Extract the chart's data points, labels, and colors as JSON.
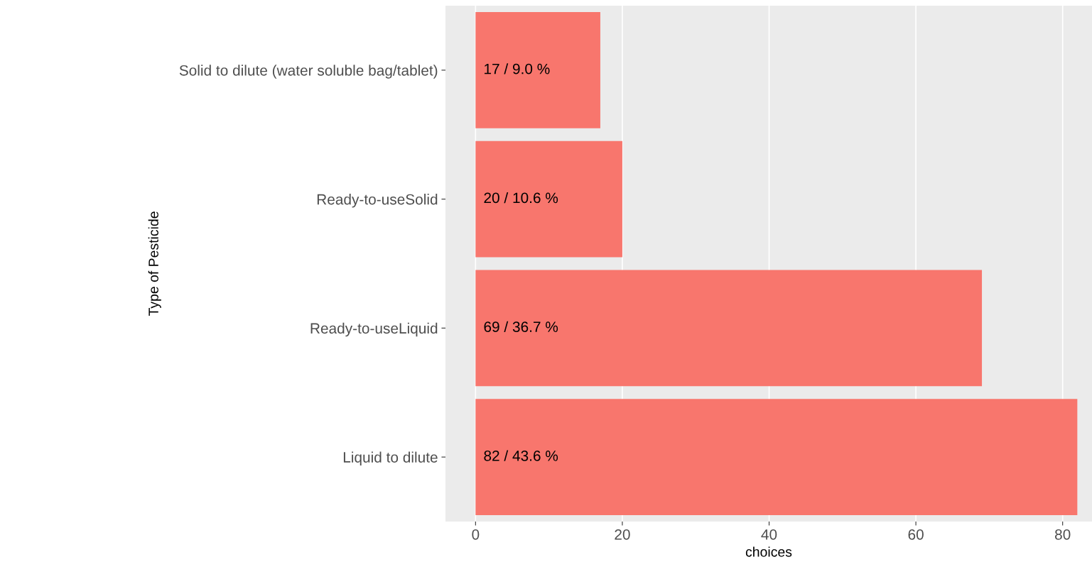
{
  "chart_data": {
    "type": "bar",
    "orientation": "horizontal",
    "xlabel": "choices",
    "ylabel": "Type of Pesticide",
    "categories": [
      "Solid to dilute (water soluble bag/tablet)",
      "Ready-to-useSolid",
      "Ready-to-useLiquid",
      "Liquid to dilute"
    ],
    "values": [
      17,
      20,
      69,
      82
    ],
    "value_labels": [
      "17 / 9.0 %",
      "20 / 10.6 %",
      "69 / 36.7 %",
      "82 / 43.6 %"
    ],
    "color": "#f8766d",
    "xlim": [
      -4.1,
      84
    ],
    "xticks": [
      0,
      20,
      40,
      60,
      80
    ],
    "grid": "x",
    "legend": false
  }
}
